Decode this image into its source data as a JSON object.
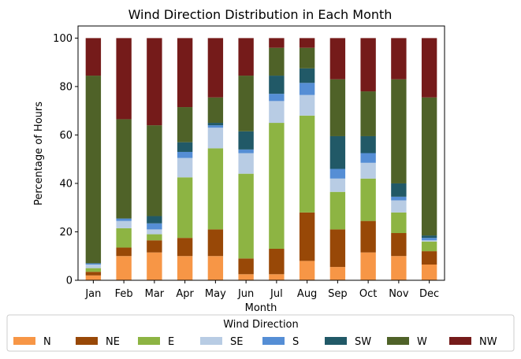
{
  "chart_data": {
    "type": "bar",
    "stacked": true,
    "title": "Wind Direction Distribution in Each Month",
    "xlabel": "Month",
    "ylabel": "Percentage of Hours",
    "ylim": [
      0,
      105
    ],
    "yticks": [
      0,
      20,
      40,
      60,
      80,
      100
    ],
    "grid": false,
    "legend_title": "Wind Direction",
    "legend_position": "bottom",
    "categories": [
      "Jan",
      "Feb",
      "Mar",
      "Apr",
      "May",
      "Jun",
      "Jul",
      "Aug",
      "Sep",
      "Oct",
      "Nov",
      "Dec"
    ],
    "series": [
      {
        "name": "N",
        "color": "#f79646",
        "values": [
          2,
          10,
          11.5,
          10,
          10,
          2.5,
          2.5,
          8,
          5.5,
          11.5,
          10,
          6.5
        ]
      },
      {
        "name": "NE",
        "color": "#984807",
        "values": [
          1.5,
          3.5,
          5,
          7.5,
          11,
          6.5,
          10.5,
          20,
          15.5,
          13,
          9.5,
          5.5
        ]
      },
      {
        "name": "E",
        "color": "#8db443",
        "values": [
          1.5,
          8,
          2.5,
          25,
          33.5,
          35,
          52,
          40,
          15.5,
          17.5,
          8.5,
          4
        ]
      },
      {
        "name": "SE",
        "color": "#b8cce4",
        "values": [
          1.5,
          3,
          2,
          8,
          8.5,
          8.5,
          9,
          8.5,
          5.5,
          6.5,
          5,
          0.5
        ]
      },
      {
        "name": "S",
        "color": "#558ed5",
        "values": [
          0.5,
          1,
          2.5,
          2.5,
          1,
          1.5,
          3,
          5,
          4,
          4,
          1.5,
          1
        ]
      },
      {
        "name": "SW",
        "color": "#215967",
        "values": [
          0,
          0,
          3,
          4,
          1,
          7.5,
          7.5,
          6,
          13.5,
          7,
          5.5,
          1
        ]
      },
      {
        "name": "W",
        "color": "#4f6228",
        "values": [
          77.5,
          41,
          37.5,
          14.5,
          10.5,
          23,
          11.5,
          8.5,
          23.5,
          18.5,
          43,
          57
        ]
      },
      {
        "name": "NW",
        "color": "#751b1a",
        "values": [
          15.5,
          33.5,
          36,
          28.5,
          24.5,
          15.5,
          4,
          4,
          17,
          22,
          17,
          24.5
        ]
      }
    ]
  }
}
